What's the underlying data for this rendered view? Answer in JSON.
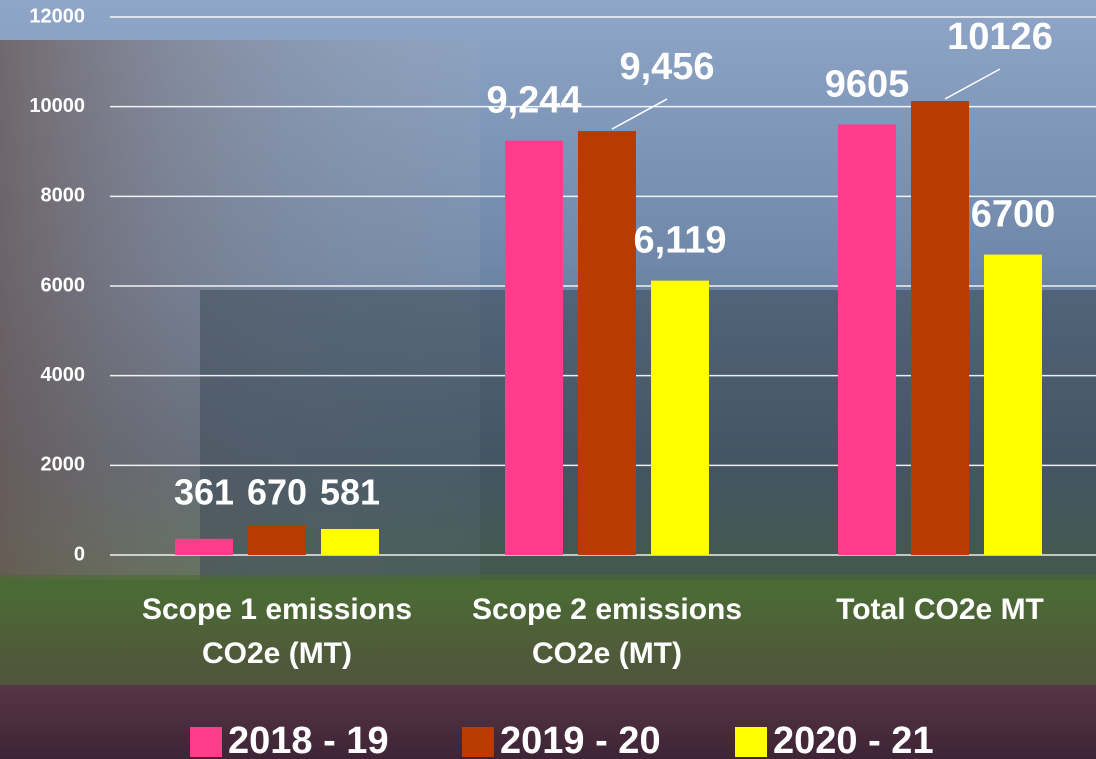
{
  "chart_data": {
    "type": "bar",
    "categories": [
      "Scope 1 emissions CO2e (MT)",
      "Scope 2 emissions CO2e (MT)",
      "Total CO2e MT"
    ],
    "series": [
      {
        "name": "2018 - 19",
        "color": "#ff3d8b",
        "values": [
          361,
          9244,
          9605
        ],
        "value_labels": [
          "361",
          "9,244",
          "9605"
        ]
      },
      {
        "name": "2019 - 20",
        "color": "#b83c00",
        "values": [
          670,
          9456,
          10126
        ],
        "value_labels": [
          "670",
          "9,456",
          "10126"
        ]
      },
      {
        "name": "2020 - 21",
        "color": "#ffff00",
        "values": [
          581,
          6119,
          6700
        ],
        "value_labels": [
          "581",
          "6,119",
          "6700"
        ]
      }
    ],
    "ylim": [
      0,
      12000
    ],
    "yticks": [
      0,
      2000,
      4000,
      6000,
      8000,
      10000,
      12000
    ],
    "grid": true,
    "legend": "bottom"
  }
}
